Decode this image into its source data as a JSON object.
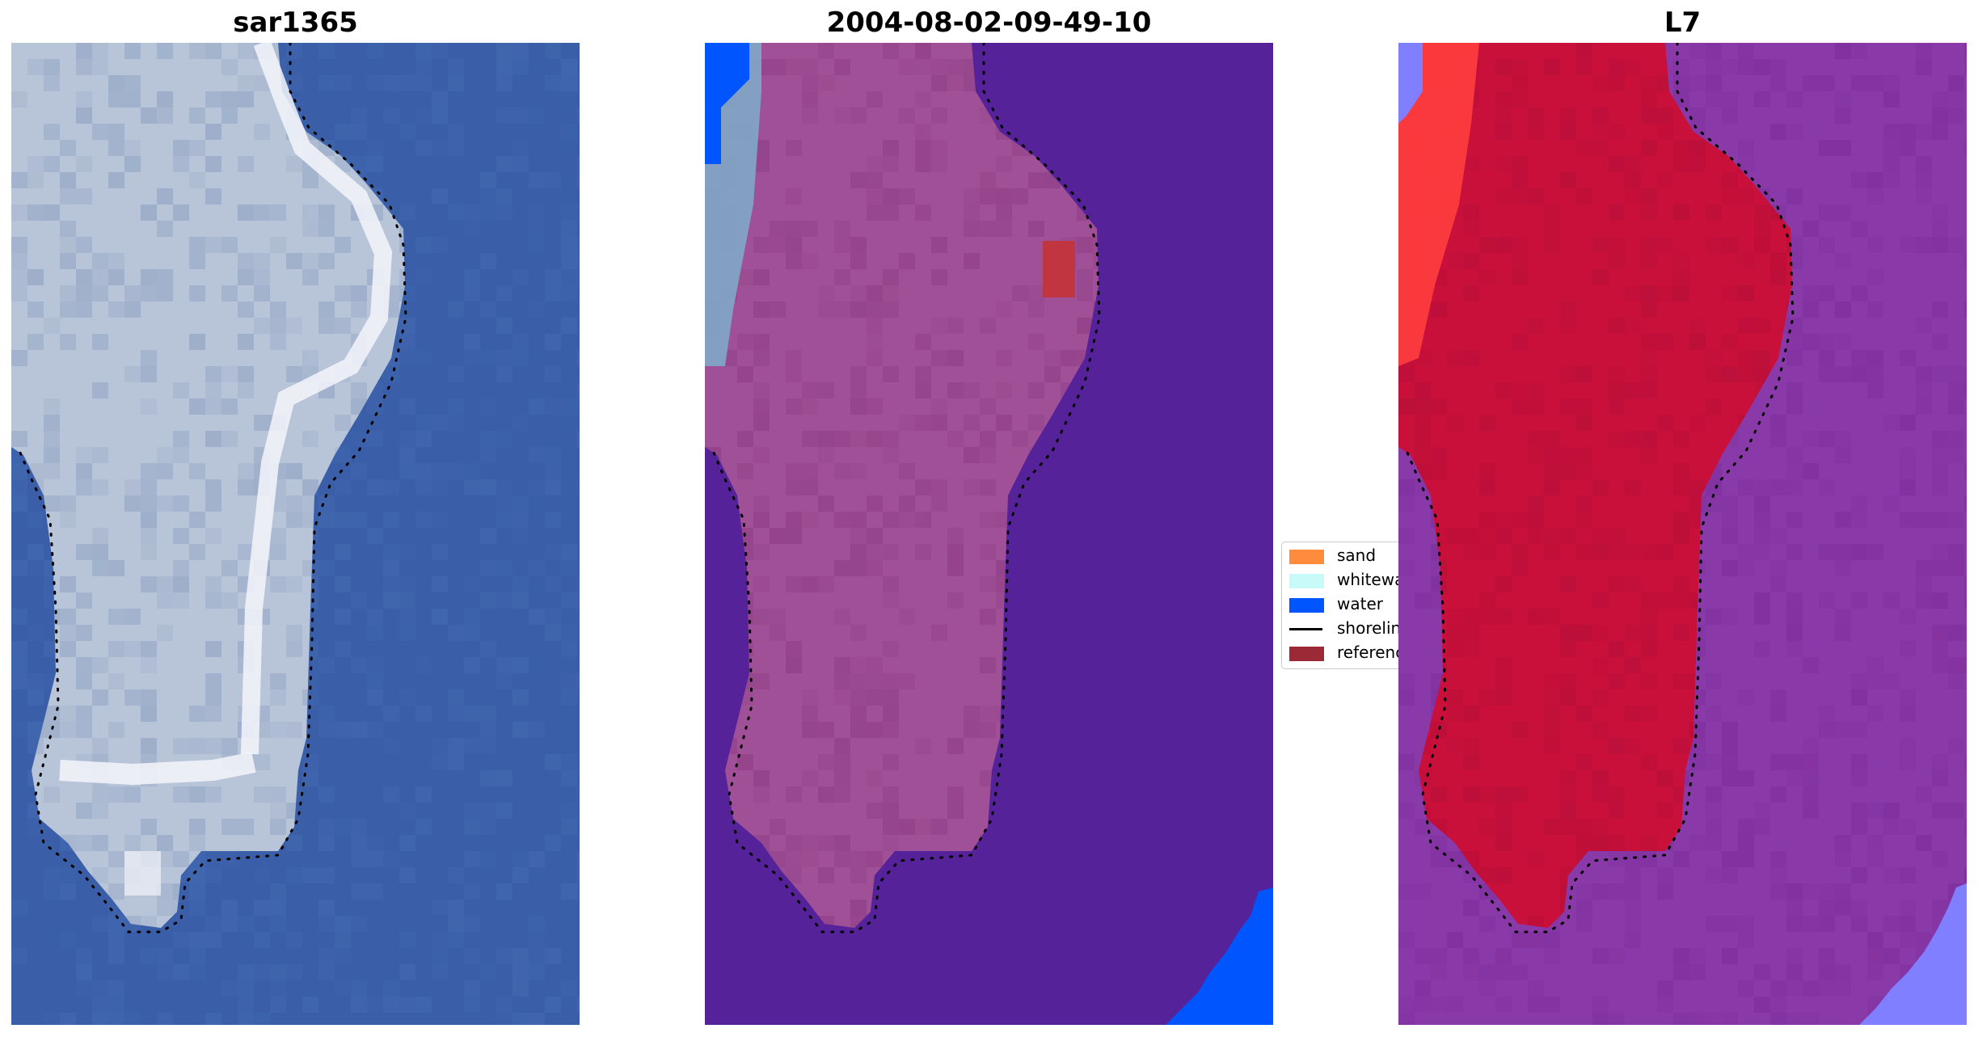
{
  "panels": [
    {
      "title": "sar1365",
      "view": "rgb"
    },
    {
      "title": "2004-08-02-09-49-10",
      "view": "classification"
    },
    {
      "title": "L7",
      "view": "index"
    }
  ],
  "legend": {
    "items": [
      {
        "label": "sand",
        "kind": "patch",
        "color": "#ff8c3c"
      },
      {
        "label": "whitewater",
        "kind": "patch",
        "color": "#c8fafa"
      },
      {
        "label": "water",
        "kind": "patch",
        "color": "#0055ff"
      },
      {
        "label": "shoreline",
        "kind": "line",
        "color": "#000000"
      },
      {
        "label": "reference shoreline",
        "kind": "patch",
        "color": "#9b2a36"
      }
    ]
  },
  "colors": {
    "rgb_water": "#3a5fa8",
    "rgb_land": "#b8c4d8",
    "rgb_bright": "#f4f6fb",
    "class_water": "#55229a",
    "class_land": "#a05096",
    "class_land_dark": "#8e3e86",
    "class_whitewater": "#7fa8c8",
    "class_bluewater": "#0055ff",
    "class_reference": "#c0353f",
    "index_water": "#8a3aa8",
    "index_land": "#c8103a",
    "index_redbright": "#ff3e3e",
    "index_bluecorner": "#7f7fff",
    "shoreline": "#000000"
  }
}
